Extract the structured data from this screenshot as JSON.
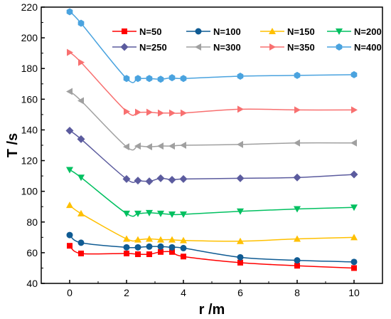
{
  "chart_data": {
    "type": "line",
    "title": "",
    "xlabel": "r /m",
    "ylabel": "T /s",
    "xlim": [
      -1,
      11
    ],
    "ylim": [
      40,
      220
    ],
    "xticks": [
      0,
      2,
      4,
      6,
      8,
      10
    ],
    "yticks": [
      40,
      60,
      80,
      100,
      120,
      140,
      160,
      180,
      200,
      220
    ],
    "grid": false,
    "legend": "top-right",
    "x": [
      0,
      0.4,
      2,
      2.4,
      2.8,
      3.2,
      3.6,
      4,
      6,
      8,
      10
    ],
    "series": [
      {
        "name": "N=50",
        "color": "#ff0000",
        "marker": "square",
        "values": [
          64.5,
          59.5,
          59.5,
          59,
          59,
          60.5,
          60.5,
          57.5,
          53.5,
          51.5,
          50
        ]
      },
      {
        "name": "N=100",
        "color": "#0f5b93",
        "marker": "circle",
        "values": [
          71.5,
          66.5,
          63.5,
          63.5,
          64,
          64,
          63.5,
          63,
          57,
          55,
          54
        ]
      },
      {
        "name": "N=150",
        "color": "#ffc000",
        "marker": "triangle-up",
        "values": [
          91,
          85.5,
          69,
          68.5,
          69,
          68.5,
          68.5,
          68,
          67.5,
          69,
          70
        ]
      },
      {
        "name": "N=200",
        "color": "#00c060",
        "marker": "triangle-down",
        "values": [
          114,
          109,
          85.5,
          85.5,
          86,
          85.5,
          85,
          85,
          87,
          88.5,
          89.5
        ]
      },
      {
        "name": "N=250",
        "color": "#5b5b9e",
        "marker": "diamond",
        "values": [
          139.5,
          134,
          108,
          107,
          106.5,
          108.5,
          107.5,
          108,
          108.5,
          109,
          111
        ]
      },
      {
        "name": "N=300",
        "color": "#a0a0a0",
        "marker": "triangle-left",
        "values": [
          165,
          159,
          129,
          129.5,
          129,
          129.5,
          129.5,
          130,
          130.5,
          131.5,
          131.5
        ]
      },
      {
        "name": "N=350",
        "color": "#f87070",
        "marker": "triangle-right",
        "values": [
          190.5,
          184,
          152,
          151.5,
          151.5,
          151,
          151,
          151,
          153.5,
          153,
          153
        ]
      },
      {
        "name": "N=400",
        "color": "#4aa3df",
        "marker": "hexagon",
        "values": [
          217,
          209.5,
          173.5,
          173.5,
          173.5,
          173,
          174,
          173.5,
          175,
          175.5,
          176
        ]
      }
    ]
  }
}
